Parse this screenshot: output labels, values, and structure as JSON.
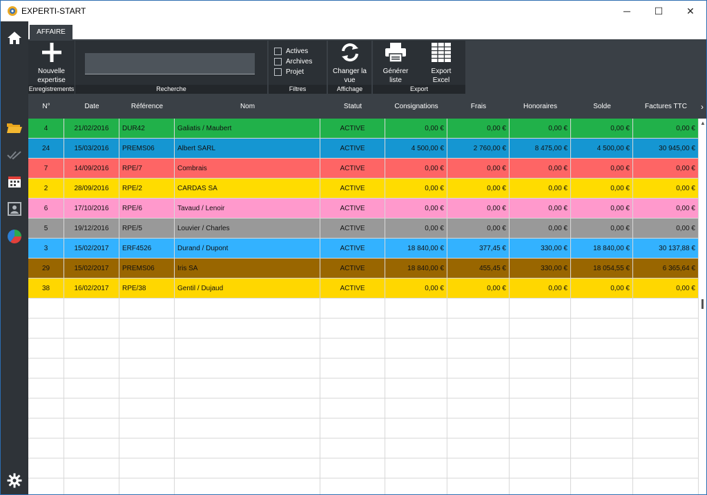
{
  "window": {
    "title": "EXPERTI-START",
    "controls": {
      "minimize": "─",
      "maximize": "☐",
      "close": "✕"
    }
  },
  "ribbon": {
    "tab": "AFFAIRE",
    "new_line1": "Nouvelle",
    "new_line2": "expertise",
    "group_records": "Enregistrements",
    "search_value": "",
    "group_search": "Recherche",
    "filter_active": "Actives",
    "filter_archives": "Archives",
    "filter_project": "Projet",
    "group_filters": "Filtres",
    "view_line1": "Changer la",
    "view_line2": "vue",
    "group_display": "Affichage",
    "gen_line1": "Générer",
    "gen_line2": "liste",
    "excel_line1": "Export",
    "excel_line2": "Excel",
    "group_export": "Export"
  },
  "table": {
    "headers": [
      "N°",
      "Date",
      "Référence",
      "Nom",
      "Statut",
      "Consignations",
      "Frais",
      "Honoraires",
      "Solde",
      "Factures TTC"
    ],
    "rows": [
      {
        "color": "#21b14a",
        "dark": false,
        "cells": [
          "4",
          "21/02/2016",
          "DUR42",
          "Galiatis / Maubert",
          "ACTIVE",
          "0,00 €",
          "0,00 €",
          "0,00 €",
          "0,00 €",
          "0,00 €"
        ]
      },
      {
        "color": "#1596d2",
        "dark": false,
        "cells": [
          "24",
          "15/03/2016",
          "PREMS06",
          "Albert SARL",
          "ACTIVE",
          "4 500,00 €",
          "2 760,00 €",
          "8 475,00 €",
          "4 500,00 €",
          "30 945,00 €"
        ]
      },
      {
        "color": "#fe6565",
        "dark": false,
        "cells": [
          "7",
          "14/09/2016",
          "RPE/7",
          "Combrais",
          "ACTIVE",
          "0,00 €",
          "0,00 €",
          "0,00 €",
          "0,00 €",
          "0,00 €"
        ]
      },
      {
        "color": "#ffdc00",
        "dark": false,
        "cells": [
          "2",
          "28/09/2016",
          "RPE/2",
          "CARDAS SA",
          "ACTIVE",
          "0,00 €",
          "0,00 €",
          "0,00 €",
          "0,00 €",
          "0,00 €"
        ]
      },
      {
        "color": "#ff99cc",
        "dark": false,
        "cells": [
          "6",
          "17/10/2016",
          "RPE/6",
          "Tavaud / Lenoir",
          "ACTIVE",
          "0,00 €",
          "0,00 €",
          "0,00 €",
          "0,00 €",
          "0,00 €"
        ]
      },
      {
        "color": "#999999",
        "dark": false,
        "cells": [
          "5",
          "19/12/2016",
          "RPE/5",
          "Louvier / Charles",
          "ACTIVE",
          "0,00 €",
          "0,00 €",
          "0,00 €",
          "0,00 €",
          "0,00 €"
        ]
      },
      {
        "color": "#33b2ff",
        "dark": false,
        "cells": [
          "3",
          "15/02/2017",
          "ERF4526",
          "Durand / Dupont",
          "ACTIVE",
          "18 840,00 €",
          "377,45 €",
          "330,00 €",
          "18 840,00 €",
          "30 137,88 €"
        ]
      },
      {
        "color": "#996600",
        "dark": false,
        "cells": [
          "29",
          "15/02/2017",
          "PREMS06",
          "Iris SA",
          "ACTIVE",
          "18 840,00 €",
          "455,45 €",
          "330,00 €",
          "18 054,55 €",
          "6 365,64 €"
        ]
      },
      {
        "color": "#ffd700",
        "dark": false,
        "cells": [
          "38",
          "16/02/2017",
          "RPE/38",
          "Gentil / Dujaud",
          "ACTIVE",
          "0,00 €",
          "0,00 €",
          "0,00 €",
          "0,00 €",
          "0,00 €"
        ]
      }
    ]
  },
  "sidebar": {
    "icons": [
      "home-icon",
      "folder-icon",
      "double-check-icon",
      "calendar-icon",
      "contact-icon",
      "pie-chart-icon",
      "gear-icon"
    ]
  }
}
